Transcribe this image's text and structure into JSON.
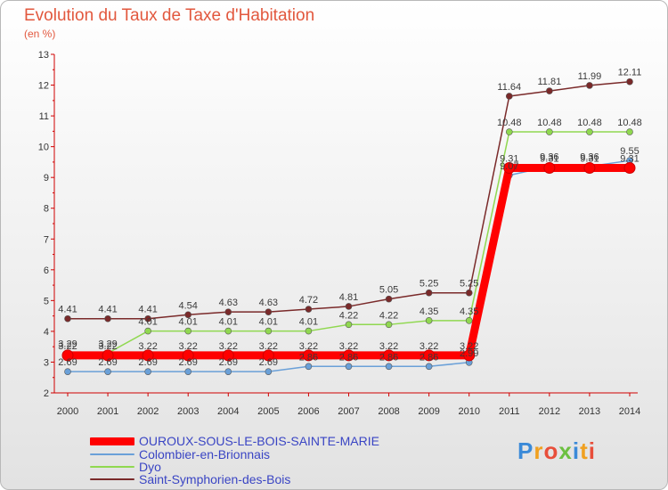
{
  "title": "Evolution du Taux de Taxe d'Habitation",
  "unit": "(en %)",
  "logo_letters": [
    "P",
    "r",
    "o",
    "x",
    "i",
    "t",
    "i"
  ],
  "chart_data": {
    "type": "line",
    "title": "Evolution du Taux de Taxe d'Habitation",
    "ylabel": "(en %)",
    "xlabel": "",
    "x": [
      "2000",
      "2001",
      "2002",
      "2003",
      "2004",
      "2005",
      "2006",
      "2007",
      "2008",
      "2009",
      "2010",
      "2011",
      "2012",
      "2013",
      "2014"
    ],
    "ylim": [
      2,
      13
    ],
    "yticks": [
      "2",
      "3",
      "4",
      "5",
      "6",
      "7",
      "8",
      "9",
      "10",
      "11",
      "12",
      "13"
    ],
    "grid": false,
    "legend_position": "bottom-left",
    "series": [
      {
        "name": "OUROUX-SOUS-LE-BOIS-SAINTE-MARIE",
        "color": "#ff0000",
        "values": [
          3.22,
          3.22,
          3.22,
          3.22,
          3.22,
          3.22,
          3.22,
          3.22,
          3.22,
          3.22,
          3.22,
          9.31,
          9.31,
          9.31,
          9.31
        ],
        "labels": [
          "3.22",
          "3.22",
          "3.22",
          "3.22",
          "3.22",
          "3.22",
          "3.22",
          "3.22",
          "3.22",
          "3.22",
          "3.22",
          "9.31",
          "9.31",
          "9.31",
          "9.31"
        ]
      },
      {
        "name": "Colombier-en-Brionnais",
        "color": "#6aa0d8",
        "values": [
          2.69,
          2.69,
          2.69,
          2.69,
          2.69,
          2.69,
          2.86,
          2.86,
          2.86,
          2.86,
          2.99,
          9.07,
          9.36,
          9.36,
          9.55
        ],
        "labels": [
          "2.69",
          "2.69",
          "2.69",
          "2.69",
          "2.69",
          "2.69",
          "2.86",
          "2.86",
          "2.86",
          "2.86",
          "2.99",
          "9.07",
          "9.36",
          "9.36",
          "9.55"
        ]
      },
      {
        "name": "Dyo",
        "color": "#90d850",
        "values": [
          3.29,
          3.29,
          4.01,
          4.01,
          4.01,
          4.01,
          4.01,
          4.22,
          4.22,
          4.35,
          4.35,
          10.48,
          10.48,
          10.48,
          10.48
        ],
        "labels": [
          "3.29",
          "3.29",
          "4.01",
          "4.01",
          "4.01",
          "4.01",
          "4.01",
          "4.22",
          "4.22",
          "4.35",
          "4.35",
          "10.48",
          "10.48",
          "10.48",
          "10.48"
        ]
      },
      {
        "name": "Saint-Symphorien-des-Bois",
        "color": "#7a2a2a",
        "values": [
          4.41,
          4.41,
          4.41,
          4.54,
          4.63,
          4.63,
          4.72,
          4.81,
          5.05,
          5.25,
          5.25,
          11.64,
          11.81,
          11.99,
          12.11
        ],
        "labels": [
          "4.41",
          "4.41",
          "4.41",
          "4.54",
          "4.63",
          "4.63",
          "4.72",
          "4.81",
          "5.05",
          "5.25",
          "5.25",
          "11.64",
          "11.81",
          "11.99",
          "12.11"
        ]
      }
    ]
  }
}
